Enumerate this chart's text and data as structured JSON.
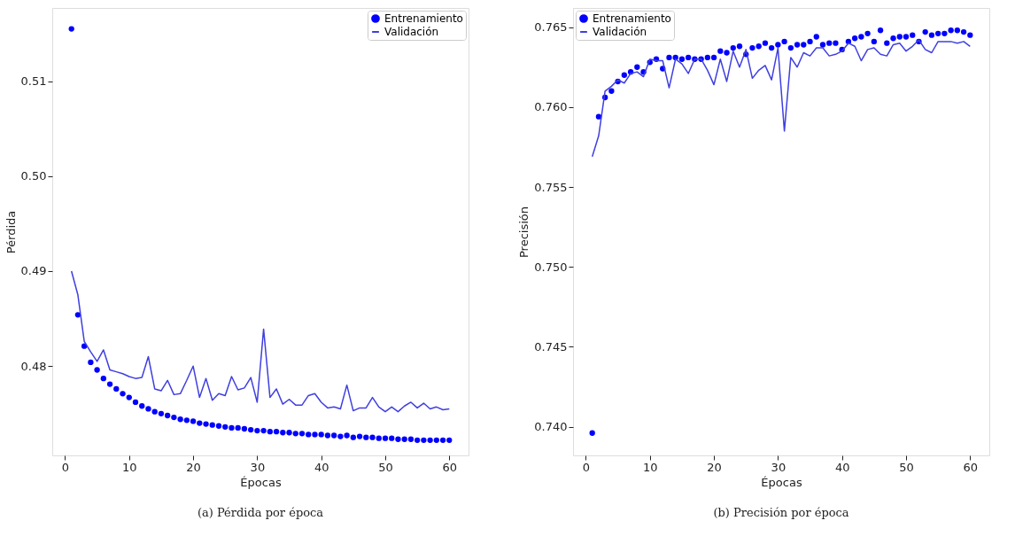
{
  "chart_data": [
    {
      "type": "line",
      "xlabel": "Épocas",
      "ylabel": "Pérdida",
      "annotations": [
        "(a) Pérdida por época"
      ],
      "xlim": [
        -2,
        63
      ],
      "ylim": [
        0.4706,
        0.5177
      ],
      "xticks": [
        0,
        10,
        20,
        30,
        40,
        50,
        60
      ],
      "yticks": [
        0.48,
        0.49,
        {
          "value": 0.5,
          "label": "0.50"
        },
        0.51
      ],
      "grid": false,
      "legend": "top right",
      "x": [
        1,
        2,
        3,
        4,
        5,
        6,
        7,
        8,
        9,
        10,
        11,
        12,
        13,
        14,
        15,
        16,
        17,
        18,
        19,
        20,
        21,
        22,
        23,
        24,
        25,
        26,
        27,
        28,
        29,
        30,
        31,
        32,
        33,
        34,
        35,
        36,
        37,
        38,
        39,
        40,
        41,
        42,
        43,
        44,
        45,
        46,
        47,
        48,
        49,
        50,
        51,
        52,
        53,
        54,
        55,
        56,
        57,
        58,
        59,
        60
      ],
      "series": [
        {
          "name": "Entrenamiento",
          "type": "scatter",
          "marker": "circle",
          "color": "#0000ff",
          "values": [
            0.5155,
            0.4854,
            0.4821,
            0.4804,
            0.4796,
            0.4787,
            0.4781,
            0.4776,
            0.4771,
            0.4767,
            0.4762,
            0.4758,
            0.4755,
            0.4752,
            0.475,
            0.4748,
            0.4746,
            0.4744,
            0.4743,
            0.4742,
            0.474,
            0.4739,
            0.4738,
            0.4737,
            0.4736,
            0.4735,
            0.4735,
            0.4734,
            0.4733,
            0.4732,
            0.4732,
            0.4731,
            0.4731,
            0.473,
            0.473,
            0.4729,
            0.4729,
            0.4728,
            0.4728,
            0.4728,
            0.4727,
            0.4727,
            0.4726,
            0.4727,
            0.4725,
            0.4726,
            0.4725,
            0.4725,
            0.4724,
            0.4724,
            0.4724,
            0.4723,
            0.4723,
            0.4723,
            0.4722,
            0.4722,
            0.4722,
            0.4722,
            0.4722,
            0.4722
          ]
        },
        {
          "name": "Validación",
          "type": "line",
          "marker": "none",
          "line_style": "solid",
          "color": "#3f3fe0",
          "values": [
            0.49,
            0.4875,
            0.4826,
            0.4815,
            0.4805,
            0.4817,
            0.4796,
            0.4794,
            0.4792,
            0.4789,
            0.4787,
            0.4788,
            0.481,
            0.4776,
            0.4774,
            0.4785,
            0.477,
            0.4771,
            0.4785,
            0.48,
            0.4767,
            0.4787,
            0.4764,
            0.4771,
            0.4769,
            0.4789,
            0.4775,
            0.4777,
            0.4788,
            0.4762,
            0.4839,
            0.4767,
            0.4776,
            0.476,
            0.4765,
            0.4759,
            0.4759,
            0.4769,
            0.4771,
            0.4762,
            0.4756,
            0.4757,
            0.4755,
            0.478,
            0.4753,
            0.4756,
            0.4756,
            0.4767,
            0.4757,
            0.4752,
            0.4757,
            0.4752,
            0.4758,
            0.4762,
            0.4756,
            0.4761,
            0.4755,
            0.4757,
            0.4754,
            0.4755
          ]
        }
      ]
    },
    {
      "type": "line",
      "xlabel": "Épocas",
      "ylabel": "Precisión",
      "annotations": [
        "(b) Precisión por época"
      ],
      "xlim": [
        -2,
        63
      ],
      "ylim": [
        0.7382,
        0.7662
      ],
      "xticks": [
        0,
        10,
        20,
        30,
        40,
        50,
        60
      ],
      "yticks": [
        {
          "value": 0.74,
          "label": "0.740"
        },
        0.745,
        {
          "value": 0.75,
          "label": "0.750"
        },
        0.755,
        {
          "value": 0.76,
          "label": "0.760"
        },
        0.765
      ],
      "grid": false,
      "legend": "top left",
      "x": [
        1,
        2,
        3,
        4,
        5,
        6,
        7,
        8,
        9,
        10,
        11,
        12,
        13,
        14,
        15,
        16,
        17,
        18,
        19,
        20,
        21,
        22,
        23,
        24,
        25,
        26,
        27,
        28,
        29,
        30,
        31,
        32,
        33,
        34,
        35,
        36,
        37,
        38,
        39,
        40,
        41,
        42,
        43,
        44,
        45,
        46,
        47,
        48,
        49,
        50,
        51,
        52,
        53,
        54,
        55,
        56,
        57,
        58,
        59,
        60
      ],
      "series": [
        {
          "name": "Entrenamiento",
          "type": "scatter",
          "marker": "circle",
          "color": "#0000ff",
          "values": [
            0.7396,
            0.7594,
            0.7606,
            0.761,
            0.7616,
            0.762,
            0.7622,
            0.7625,
            0.7622,
            0.7628,
            0.763,
            0.7624,
            0.7631,
            0.7631,
            0.763,
            0.7631,
            0.763,
            0.763,
            0.7631,
            0.7631,
            0.7635,
            0.7634,
            0.7637,
            0.7638,
            0.7633,
            0.7637,
            0.7638,
            0.764,
            0.7637,
            0.7639,
            0.7641,
            0.7637,
            0.7639,
            0.7639,
            0.7641,
            0.7644,
            0.7639,
            0.764,
            0.764,
            0.7636,
            0.7641,
            0.7643,
            0.7644,
            0.7646,
            0.7641,
            0.7648,
            0.764,
            0.7643,
            0.7644,
            0.7644,
            0.7645,
            0.7641,
            0.7647,
            0.7645,
            0.7646,
            0.7646,
            0.7648,
            0.7648,
            0.7647,
            0.7645
          ]
        },
        {
          "name": "Validación",
          "type": "line",
          "marker": "none",
          "line_style": "solid",
          "color": "#3f3fe0",
          "values": [
            0.7569,
            0.7582,
            0.761,
            0.7613,
            0.7617,
            0.7615,
            0.7621,
            0.7622,
            0.7619,
            0.763,
            0.7629,
            0.7629,
            0.7612,
            0.763,
            0.7627,
            0.7621,
            0.763,
            0.763,
            0.7623,
            0.7614,
            0.763,
            0.7616,
            0.7635,
            0.7625,
            0.7636,
            0.7618,
            0.7623,
            0.7626,
            0.7617,
            0.7637,
            0.7585,
            0.7631,
            0.7625,
            0.7634,
            0.7632,
            0.7637,
            0.7637,
            0.7632,
            0.7633,
            0.7635,
            0.764,
            0.7638,
            0.7629,
            0.7636,
            0.7637,
            0.7633,
            0.7632,
            0.7639,
            0.764,
            0.7635,
            0.7638,
            0.7642,
            0.7636,
            0.7634,
            0.7641,
            0.7641,
            0.7641,
            0.764,
            0.7641,
            0.7638
          ]
        }
      ]
    }
  ]
}
